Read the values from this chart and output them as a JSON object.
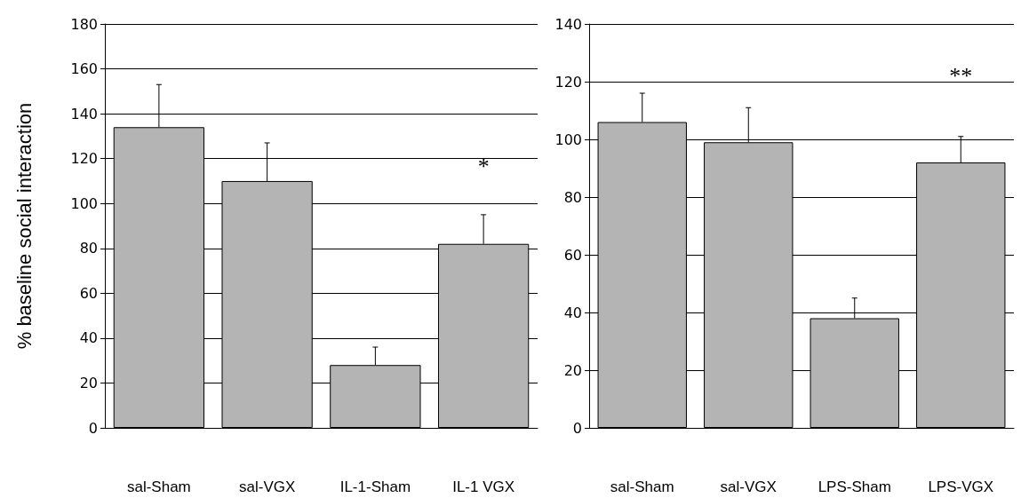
{
  "chart_data": [
    {
      "type": "bar",
      "ylabel": "% baseline social interaction",
      "categories": [
        "sal-Sham",
        "sal-VGX",
        "IL-1-Sham",
        "IL-1 VGX"
      ],
      "values": [
        134,
        110,
        28,
        82
      ],
      "errors": [
        [
          134,
          153
        ],
        [
          110,
          127
        ],
        [
          28,
          36
        ],
        [
          82,
          95
        ]
      ],
      "color": "#b4b4b4",
      "ylim": [
        0,
        180
      ],
      "yticks": [
        0,
        20,
        40,
        60,
        80,
        100,
        120,
        140,
        160,
        180
      ],
      "grid": "y",
      "annotations": [
        "*"
      ]
    },
    {
      "type": "bar",
      "categories": [
        "sal-Sham",
        "sal-VGX",
        "LPS-Sham",
        "LPS-VGX"
      ],
      "values": [
        106,
        99,
        38,
        92
      ],
      "errors": [
        [
          106,
          116
        ],
        [
          99,
          111
        ],
        [
          38,
          45
        ],
        [
          92,
          101
        ]
      ],
      "color": "#b4b4b4",
      "ylim": [
        0,
        140
      ],
      "yticks": [
        0,
        20,
        40,
        60,
        80,
        100,
        120,
        140
      ],
      "grid": "y",
      "annotations": [
        "**"
      ]
    }
  ]
}
